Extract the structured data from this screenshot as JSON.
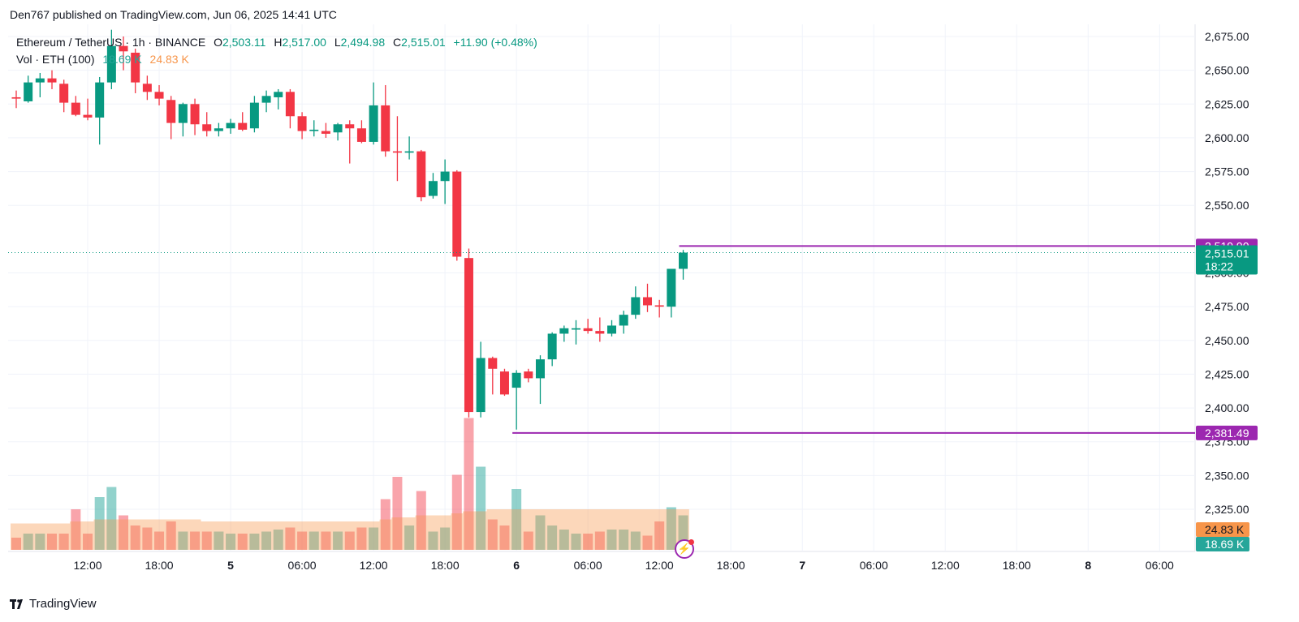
{
  "publisher": "Den767 published on TradingView.com, Jun 06, 2025 14:41 UTC",
  "legend": {
    "symbol": "Ethereum / TetherUS · 1h · BINANCE",
    "open_label": "O",
    "open": "2,503.11",
    "high_label": "H",
    "high": "2,517.00",
    "low_label": "L",
    "low": "2,494.98",
    "close_label": "C",
    "close": "2,515.01",
    "change": "+11.90 (+0.48%)",
    "vol_label": "Vol · ETH (100)",
    "vol_value": "18.69 K",
    "vol_ma": "24.83 K"
  },
  "logo_text": "TradingView",
  "colors": {
    "up": "#089981",
    "down": "#f23645",
    "level": "#9c27b0",
    "vol_ma": "#f7954a",
    "grid": "#f0f3fa"
  },
  "chart_data": {
    "type": "candlestick",
    "symbol": "Ethereum / TetherUS",
    "interval": "1h",
    "ylim": [
      2310,
      2690
    ],
    "y_ticks": [
      "2,675.00",
      "2,650.00",
      "2,625.00",
      "2,600.00",
      "2,575.00",
      "2,550.00",
      "2,500.00",
      "2,475.00",
      "2,450.00",
      "2,425.00",
      "2,400.00",
      "2,375.00",
      "2,350.00",
      "2,325.00"
    ],
    "y_tick_values": [
      2675,
      2650,
      2625,
      2600,
      2575,
      2550,
      2500,
      2475,
      2450,
      2425,
      2400,
      2375,
      2350,
      2325
    ],
    "x_ticks": [
      {
        "i": 6,
        "label": "12:00"
      },
      {
        "i": 12,
        "label": "18:00"
      },
      {
        "i": 18,
        "label": "5"
      },
      {
        "i": 24,
        "label": "06:00"
      },
      {
        "i": 30,
        "label": "12:00"
      },
      {
        "i": 36,
        "label": "18:00"
      },
      {
        "i": 42,
        "label": "6"
      },
      {
        "i": 48,
        "label": "06:00"
      },
      {
        "i": 54,
        "label": "12:00"
      },
      {
        "i": 60,
        "label": "18:00"
      },
      {
        "i": 66,
        "label": "7"
      },
      {
        "i": 72,
        "label": "06:00"
      },
      {
        "i": 78,
        "label": "12:00"
      },
      {
        "i": 84,
        "label": "18:00"
      },
      {
        "i": 90,
        "label": "8"
      },
      {
        "i": 96,
        "label": "06:00"
      }
    ],
    "ohlc": [
      [
        2630,
        2635,
        2622,
        2629
      ],
      [
        2627,
        2646,
        2626,
        2641
      ],
      [
        2641,
        2648,
        2630,
        2644
      ],
      [
        2644,
        2650,
        2636,
        2641
      ],
      [
        2640,
        2643,
        2619,
        2626
      ],
      [
        2626,
        2631,
        2616,
        2617
      ],
      [
        2617,
        2629,
        2613,
        2615
      ],
      [
        2615,
        2645,
        2595,
        2641
      ],
      [
        2641,
        2680,
        2636,
        2668
      ],
      [
        2668,
        2675,
        2650,
        2664
      ],
      [
        2663,
        2666,
        2633,
        2641
      ],
      [
        2640,
        2646,
        2628,
        2634
      ],
      [
        2634,
        2639,
        2624,
        2629
      ],
      [
        2628,
        2631,
        2599,
        2611
      ],
      [
        2611,
        2626,
        2601,
        2625
      ],
      [
        2625,
        2629,
        2602,
        2610
      ],
      [
        2610,
        2619,
        2601,
        2605
      ],
      [
        2605,
        2611,
        2601,
        2607
      ],
      [
        2607,
        2614,
        2603,
        2611
      ],
      [
        2611,
        2619,
        2605,
        2606
      ],
      [
        2607,
        2631,
        2604,
        2626
      ],
      [
        2626,
        2635,
        2619,
        2631
      ],
      [
        2630,
        2636,
        2621,
        2634
      ],
      [
        2634,
        2636,
        2607,
        2616
      ],
      [
        2616,
        2619,
        2599,
        2605
      ],
      [
        2605,
        2613,
        2601,
        2606
      ],
      [
        2605,
        2611,
        2600,
        2603
      ],
      [
        2604,
        2611,
        2598,
        2610
      ],
      [
        2610,
        2613,
        2581,
        2607
      ],
      [
        2607,
        2613,
        2596,
        2597
      ],
      [
        2597,
        2641,
        2595,
        2624
      ],
      [
        2624,
        2639,
        2586,
        2590
      ],
      [
        2590,
        2616,
        2568,
        2589
      ],
      [
        2589,
        2601,
        2584,
        2590
      ],
      [
        2590,
        2591,
        2553,
        2556
      ],
      [
        2557,
        2574,
        2555,
        2568
      ],
      [
        2568,
        2584,
        2551,
        2575
      ],
      [
        2575,
        2576,
        2509,
        2512
      ],
      [
        2511,
        2518,
        2393,
        2397
      ],
      [
        2397,
        2449,
        2393,
        2437
      ],
      [
        2437,
        2438,
        2410,
        2429
      ],
      [
        2427,
        2429,
        2409,
        2410
      ],
      [
        2415,
        2428,
        2384,
        2426
      ],
      [
        2427,
        2429,
        2419,
        2422
      ],
      [
        2422,
        2439,
        2403,
        2436
      ],
      [
        2436,
        2456,
        2431,
        2455
      ],
      [
        2455,
        2461,
        2449,
        2459
      ],
      [
        2458,
        2465,
        2447,
        2459
      ],
      [
        2459,
        2466,
        2455,
        2457
      ],
      [
        2457,
        2467,
        2449,
        2455
      ],
      [
        2455,
        2465,
        2453,
        2461
      ],
      [
        2461,
        2472,
        2455,
        2469
      ],
      [
        2469,
        2490,
        2466,
        2482
      ],
      [
        2482,
        2492,
        2471,
        2476
      ],
      [
        2476,
        2480,
        2467,
        2475
      ],
      [
        2475,
        2503,
        2467,
        2503
      ],
      [
        2503,
        2517,
        2495,
        2515
      ]
    ],
    "volume": [
      6,
      8,
      8,
      8,
      8,
      20,
      8,
      26,
      31,
      17,
      12,
      11,
      9,
      14,
      9,
      9,
      9,
      9,
      8,
      8,
      8,
      9,
      10,
      11,
      9,
      9,
      9,
      9,
      9,
      11,
      11,
      25,
      36,
      12,
      29,
      9,
      11,
      37,
      65,
      41,
      15,
      12,
      30,
      9,
      17,
      12,
      10,
      8,
      8,
      9,
      10,
      10,
      9,
      7,
      14,
      21,
      17
    ],
    "volume_ma": [
      13,
      13,
      13,
      13,
      13,
      14,
      14,
      15,
      15,
      15,
      15,
      15,
      15,
      15,
      15,
      15,
      14,
      14,
      14,
      14,
      14,
      14,
      14,
      14,
      14,
      14,
      14,
      14,
      14,
      14,
      14,
      15,
      16,
      16,
      17,
      17,
      17,
      18,
      19,
      19,
      20,
      20,
      20,
      20,
      20,
      20,
      20,
      20,
      20,
      20,
      20,
      20,
      20,
      20,
      20,
      20,
      20
    ],
    "levels": [
      {
        "value": 2519.9,
        "label": "2,519.90",
        "from_index": 56
      },
      {
        "value": 2381.49,
        "label": "2,381.49",
        "from_index": 42
      }
    ],
    "last_price": {
      "value": 2515.01,
      "label": "2,515.01",
      "countdown": "18:22"
    },
    "volume_badges": [
      {
        "label": "24.83 K",
        "series": "vol_ma"
      },
      {
        "label": "18.69 K",
        "series": "vol"
      }
    ]
  }
}
